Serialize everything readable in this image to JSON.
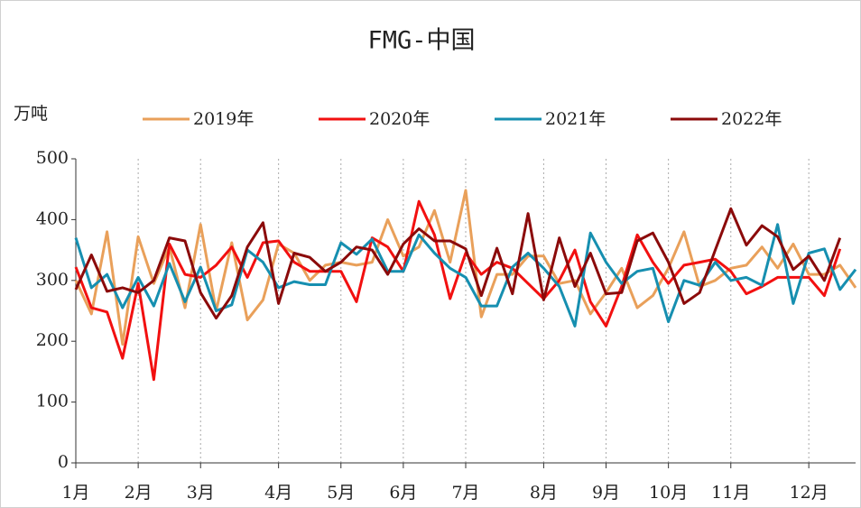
{
  "chart_data": {
    "type": "line",
    "title": "FMG-中国",
    "y_label": "万吨",
    "categories": [
      "1月",
      null,
      null,
      null,
      "2月",
      null,
      null,
      null,
      "3月",
      null,
      null,
      null,
      null,
      "4月",
      null,
      null,
      null,
      "5月",
      null,
      null,
      null,
      "6月",
      null,
      null,
      null,
      "7月",
      null,
      null,
      null,
      null,
      "8月",
      null,
      null,
      null,
      "9月",
      null,
      null,
      null,
      "10月",
      null,
      null,
      null,
      "11月",
      null,
      null,
      null,
      null,
      "12月",
      null,
      null,
      null
    ],
    "series": [
      {
        "name": "2019年",
        "color": "#e9a05a",
        "values": [
          300,
          245,
          380,
          195,
          372,
          295,
          355,
          255,
          392,
          250,
          362,
          235,
          268,
          360,
          345,
          300,
          325,
          330,
          325,
          330,
          400,
          340,
          355,
          415,
          330,
          448,
          240,
          310,
          310,
          340,
          340,
          295,
          300,
          245,
          280,
          320,
          255,
          275,
          320,
          380,
          290,
          300,
          320,
          325,
          355,
          320,
          360,
          310,
          310,
          325,
          288
        ]
      },
      {
        "name": "2020年",
        "color": "#f21010",
        "values": [
          322,
          255,
          248,
          172,
          295,
          137,
          360,
          310,
          305,
          325,
          355,
          305,
          362,
          365,
          330,
          315,
          315,
          315,
          265,
          370,
          355,
          315,
          430,
          375,
          270,
          345,
          310,
          330,
          320,
          295,
          270,
          300,
          350,
          265,
          225,
          290,
          375,
          330,
          295,
          325,
          330,
          335,
          315,
          278,
          290,
          305,
          305,
          305,
          275,
          352,
          null
        ]
      },
      {
        "name": "2021年",
        "color": "#168fb0",
        "values": [
          370,
          288,
          310,
          255,
          305,
          258,
          328,
          265,
          322,
          250,
          260,
          350,
          330,
          288,
          298,
          293,
          293,
          362,
          343,
          368,
          315,
          315,
          375,
          345,
          320,
          305,
          258,
          258,
          322,
          345,
          320,
          290,
          225,
          378,
          330,
          295,
          315,
          320,
          232,
          300,
          292,
          330,
          300,
          305,
          292,
          392,
          262,
          345,
          352,
          285,
          318
        ]
      },
      {
        "name": "2022年",
        "color": "#8b0a0a",
        "values": [
          285,
          342,
          282,
          288,
          280,
          300,
          370,
          365,
          280,
          238,
          275,
          355,
          395,
          262,
          345,
          338,
          315,
          330,
          355,
          350,
          310,
          360,
          385,
          365,
          365,
          352,
          275,
          353,
          278,
          410,
          268,
          370,
          290,
          345,
          278,
          280,
          365,
          378,
          330,
          262,
          280,
          350,
          418,
          358,
          390,
          372,
          318,
          340,
          300,
          370,
          null
        ]
      }
    ],
    "ylim": [
      0,
      500
    ],
    "yticks": [
      0,
      100,
      200,
      300,
      400,
      500
    ]
  }
}
